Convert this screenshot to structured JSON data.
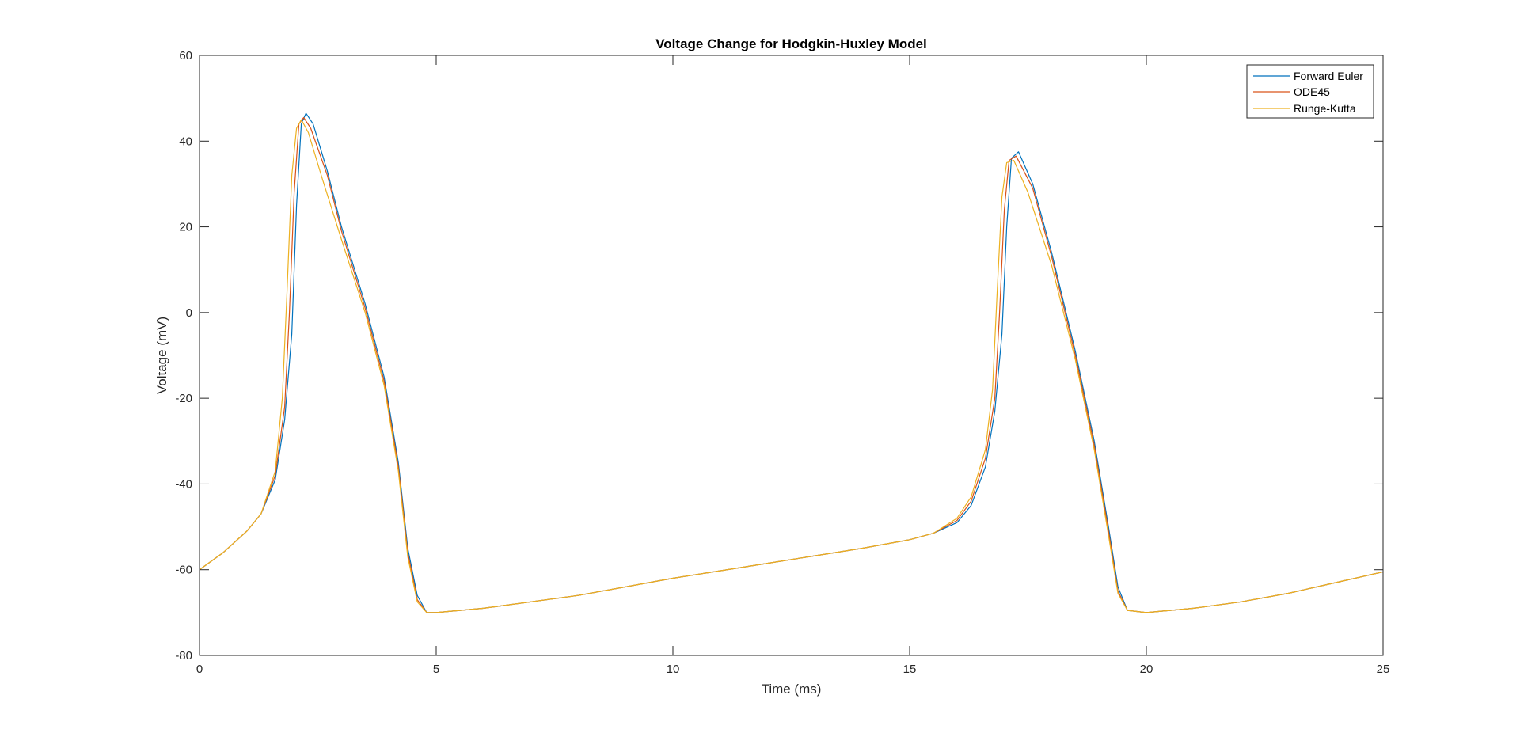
{
  "chart_data": {
    "type": "line",
    "title": "Voltage Change for Hodgkin-Huxley Model",
    "xlabel": "Time (ms)",
    "ylabel": "Voltage (mV)",
    "xlim": [
      0,
      25
    ],
    "ylim": [
      -80,
      60
    ],
    "xticks": [
      "0",
      "5",
      "10",
      "15",
      "20",
      "25"
    ],
    "yticks": [
      "-80",
      "-60",
      "-40",
      "-20",
      "0",
      "20",
      "40",
      "60"
    ],
    "grid": false,
    "legend_position": "top-right",
    "series": [
      {
        "name": "Forward Euler",
        "color": "#0072BD",
        "x": [
          0,
          0.5,
          1.0,
          1.3,
          1.6,
          1.8,
          1.95,
          2.05,
          2.15,
          2.25,
          2.4,
          2.7,
          3.0,
          3.5,
          3.9,
          4.2,
          4.4,
          4.6,
          4.8,
          5.0,
          6.0,
          8.0,
          10.0,
          12.0,
          14.0,
          15.0,
          15.5,
          16.0,
          16.3,
          16.6,
          16.8,
          16.95,
          17.05,
          17.15,
          17.3,
          17.6,
          18.0,
          18.5,
          18.9,
          19.2,
          19.4,
          19.6,
          20.0,
          21.0,
          22.0,
          23.0,
          24.0,
          25.0
        ],
        "y": [
          -60,
          -56,
          -51,
          -47,
          -39,
          -25,
          -5,
          25,
          44,
          46.5,
          44,
          33,
          20,
          2,
          -15,
          -35,
          -55,
          -66,
          -70,
          -70,
          -69,
          -66,
          -62,
          -58.5,
          -55,
          -53,
          -51.5,
          -49,
          -45,
          -36,
          -23,
          -5,
          20,
          36,
          37.5,
          30,
          14,
          -9,
          -30,
          -50,
          -64,
          -69.5,
          -70,
          -69,
          -67.5,
          -65.5,
          -63,
          -60.5
        ]
      },
      {
        "name": "ODE45",
        "color": "#D95319",
        "x": [
          0,
          0.5,
          1.0,
          1.3,
          1.6,
          1.8,
          1.9,
          2.0,
          2.1,
          2.2,
          2.35,
          2.7,
          3.0,
          3.5,
          3.9,
          4.2,
          4.4,
          4.6,
          4.8,
          5.0,
          6.0,
          8.0,
          10.0,
          12.0,
          14.0,
          15.0,
          15.5,
          16.0,
          16.3,
          16.6,
          16.8,
          16.9,
          17.0,
          17.1,
          17.25,
          17.6,
          18.0,
          18.5,
          18.9,
          19.2,
          19.4,
          19.6,
          20.0,
          21.0,
          22.0,
          23.0,
          24.0,
          25.0
        ],
        "y": [
          -60,
          -56,
          -51,
          -47,
          -38,
          -22,
          0,
          28,
          44,
          45.5,
          43,
          32,
          19,
          1,
          -16,
          -36,
          -56,
          -67,
          -70,
          -70,
          -69,
          -66,
          -62,
          -58.5,
          -55,
          -53,
          -51.5,
          -48.5,
          -44,
          -34,
          -20,
          0,
          24,
          35.5,
          36.5,
          29,
          13,
          -10,
          -31,
          -51,
          -65,
          -69.5,
          -70,
          -69,
          -67.5,
          -65.5,
          -63,
          -60.5
        ]
      },
      {
        "name": "Runge-Kutta",
        "color": "#EDB120",
        "x": [
          0,
          0.5,
          1.0,
          1.3,
          1.6,
          1.75,
          1.85,
          1.95,
          2.05,
          2.15,
          2.3,
          2.6,
          3.0,
          3.5,
          3.9,
          4.2,
          4.4,
          4.6,
          4.8,
          5.0,
          6.0,
          8.0,
          10.0,
          12.0,
          14.0,
          15.0,
          15.5,
          16.0,
          16.3,
          16.6,
          16.75,
          16.85,
          16.95,
          17.05,
          17.2,
          17.5,
          18.0,
          18.5,
          18.9,
          19.2,
          19.4,
          19.6,
          20.0,
          21.0,
          22.0,
          23.0,
          24.0,
          25.0
        ],
        "y": [
          -60,
          -56,
          -51,
          -47,
          -37,
          -20,
          5,
          32,
          43,
          45,
          42,
          31,
          17,
          0,
          -17,
          -37,
          -57,
          -67.5,
          -70,
          -70,
          -69,
          -66,
          -62,
          -58.5,
          -55,
          -53,
          -51.5,
          -48,
          -43,
          -32,
          -18,
          5,
          27,
          35,
          35.5,
          28,
          11,
          -11,
          -32,
          -52,
          -65.5,
          -69.5,
          -70,
          -69,
          -67.5,
          -65.5,
          -63,
          -60.5
        ]
      }
    ]
  }
}
